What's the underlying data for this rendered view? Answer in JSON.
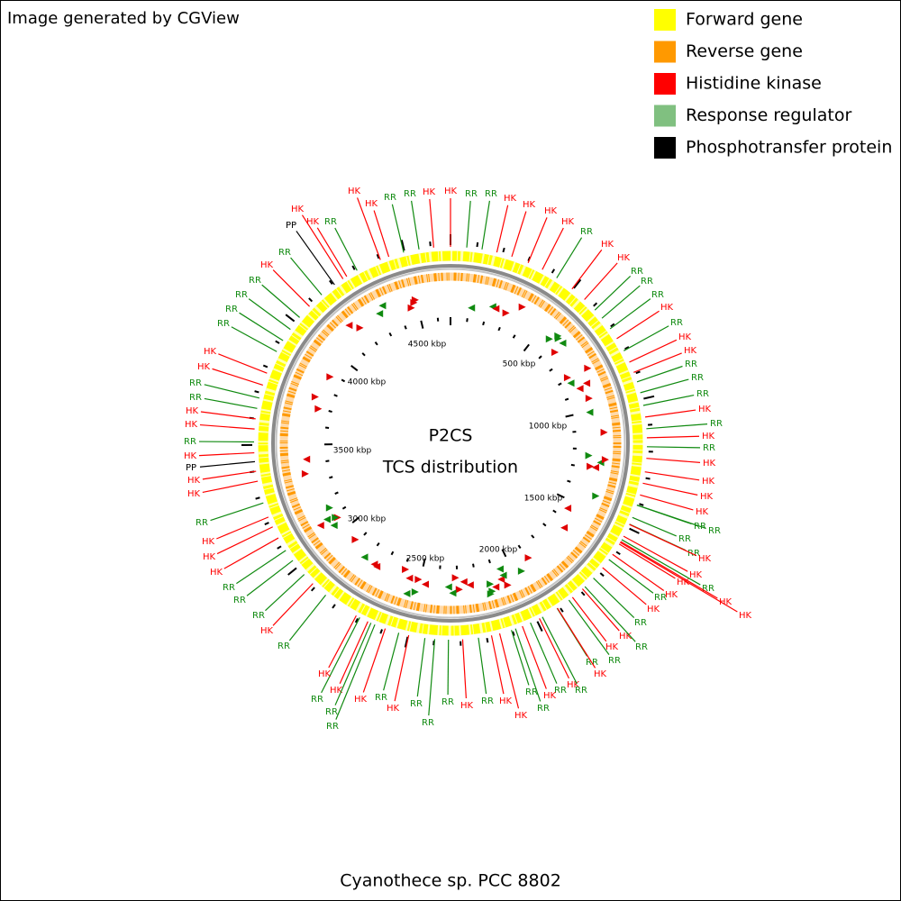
{
  "header": {
    "credit": "Image generated by CGView"
  },
  "legend": [
    {
      "label": "Forward gene",
      "color": "#ffff00"
    },
    {
      "label": "Reverse gene",
      "color": "#ff9900"
    },
    {
      "label": "Histidine kinase",
      "color": "#ff0000"
    },
    {
      "label": "Response regulator",
      "color": "#80c080"
    },
    {
      "label": "Phosphotransfer protein",
      "color": "#000000"
    }
  ],
  "map": {
    "title": "P2CS",
    "subtitle": "TCS distribution",
    "footer": "Cyanothece sp. PCC 8802",
    "scale_labels": [
      "500 kbp",
      "1000 kbp",
      "1500 kbp",
      "2000 kbp",
      "2500 kbp",
      "3000 kbp",
      "3500 kbp",
      "4000 kbp",
      "4500 kbp"
    ],
    "feature_labels": [
      "HK",
      "PP",
      "HK",
      "RR",
      "HK",
      "HK",
      "RR",
      "RR",
      "HK",
      "HK",
      "RR",
      "RR",
      "HK",
      "HK",
      "HK",
      "HK",
      "RR",
      "HK",
      "HK",
      "RR",
      "RR",
      "RR",
      "HK",
      "RR",
      "HK",
      "HK",
      "RR",
      "RR",
      "RR",
      "HK",
      "RR",
      "HK",
      "RR",
      "HK",
      "HK",
      "HK",
      "HK",
      "RR",
      "RR",
      "RR",
      "RR",
      "HK",
      "HK",
      "HK",
      "RR",
      "HK",
      "RR",
      "HK",
      "HK",
      "HK",
      "RR",
      "HK",
      "RR",
      "HK",
      "RR",
      "RR",
      "HK",
      "HK",
      "RR",
      "RR",
      "HK",
      "RR",
      "RR",
      "HK",
      "HK",
      "RR",
      "HK",
      "RR",
      "RR",
      "RR",
      "HK",
      "RR",
      "HK",
      "HK",
      "RR",
      "RR",
      "RR",
      "HK",
      "RR",
      "HK",
      "RR",
      "RR",
      "RR",
      "HK",
      "HK",
      "HK",
      "RR",
      "HK",
      "HK",
      "PP",
      "HK",
      "RR",
      "HK",
      "HK",
      "RR",
      "RR",
      "HK",
      "HK",
      "RR",
      "RR",
      "RR",
      "RR",
      "HK",
      "RR"
    ]
  }
}
